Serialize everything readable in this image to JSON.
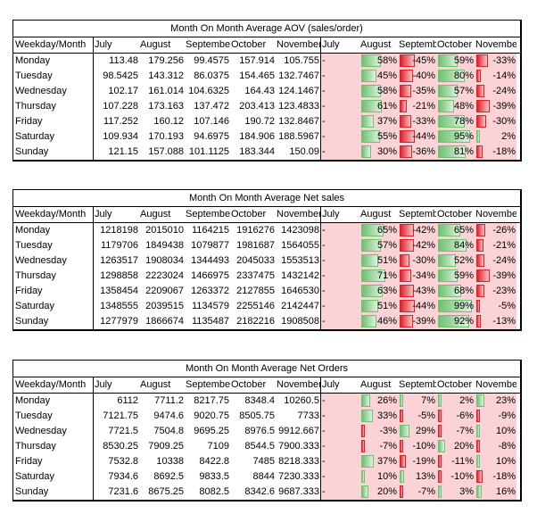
{
  "tables": [
    {
      "title": "Month On Month Average AOV (sales/order)",
      "headers": [
        "Weekday/Month",
        "July",
        "August",
        "September",
        "October",
        "November",
        "July",
        "August",
        "September",
        "October",
        "November"
      ],
      "rows": [
        {
          "day": "Monday",
          "vals": [
            "113.48",
            "179.256",
            "99.4575",
            "157.914",
            "105.755"
          ],
          "pct": [
            "-",
            "58%",
            "-45%",
            "59%",
            "-33%"
          ]
        },
        {
          "day": "Tuesday",
          "vals": [
            "98.5425",
            "143.312",
            "86.0375",
            "154.465",
            "132.7467"
          ],
          "pct": [
            "-",
            "45%",
            "-40%",
            "80%",
            "-14%"
          ]
        },
        {
          "day": "Wednesday",
          "vals": [
            "102.17",
            "161.014",
            "104.6325",
            "164.43",
            "124.1467"
          ],
          "pct": [
            "-",
            "58%",
            "-35%",
            "57%",
            "-24%"
          ]
        },
        {
          "day": "Thursday",
          "vals": [
            "107.228",
            "173.163",
            "137.472",
            "203.413",
            "123.4833"
          ],
          "pct": [
            "-",
            "61%",
            "-21%",
            "48%",
            "-39%"
          ]
        },
        {
          "day": "Friday",
          "vals": [
            "117.252",
            "160.12",
            "107.146",
            "190.72",
            "132.8467"
          ],
          "pct": [
            "-",
            "37%",
            "-33%",
            "78%",
            "-30%"
          ]
        },
        {
          "day": "Saturday",
          "vals": [
            "109.934",
            "170.193",
            "94.6975",
            "184.906",
            "188.5967"
          ],
          "pct": [
            "-",
            "55%",
            "-44%",
            "95%",
            "2%"
          ]
        },
        {
          "day": "Sunday",
          "vals": [
            "121.15",
            "157.088",
            "101.1125",
            "183.344",
            "150.09"
          ],
          "pct": [
            "-",
            "30%",
            "-36%",
            "81%",
            "-18%"
          ]
        }
      ]
    },
    {
      "title": "Month On Month Average Net sales",
      "headers": [
        "Weekday/Month",
        "July",
        "August",
        "September",
        "October",
        "November",
        "July",
        "August",
        "September",
        "October",
        "November"
      ],
      "rows": [
        {
          "day": "Monday",
          "vals": [
            "1218198",
            "2015010",
            "1164215",
            "1916276",
            "1423098"
          ],
          "pct": [
            "-",
            "65%",
            "-42%",
            "65%",
            "-26%"
          ]
        },
        {
          "day": "Tuesday",
          "vals": [
            "1179706",
            "1849438",
            "1079877",
            "1981687",
            "1564055"
          ],
          "pct": [
            "-",
            "57%",
            "-42%",
            "84%",
            "-21%"
          ]
        },
        {
          "day": "Wednesday",
          "vals": [
            "1263517",
            "1908034",
            "1344493",
            "2045033",
            "1553513"
          ],
          "pct": [
            "-",
            "51%",
            "-30%",
            "52%",
            "-24%"
          ]
        },
        {
          "day": "Thursday",
          "vals": [
            "1298858",
            "2223024",
            "1466975",
            "2337475",
            "1432142"
          ],
          "pct": [
            "-",
            "71%",
            "-34%",
            "59%",
            "-39%"
          ]
        },
        {
          "day": "Friday",
          "vals": [
            "1358454",
            "2209067",
            "1263372",
            "2127855",
            "1646530"
          ],
          "pct": [
            "-",
            "63%",
            "-43%",
            "68%",
            "-23%"
          ]
        },
        {
          "day": "Saturday",
          "vals": [
            "1348555",
            "2039515",
            "1134579",
            "2255146",
            "2142447"
          ],
          "pct": [
            "-",
            "51%",
            "-44%",
            "99%",
            "-5%"
          ]
        },
        {
          "day": "Sunday",
          "vals": [
            "1277979",
            "1866674",
            "1135487",
            "2182216",
            "1908508"
          ],
          "pct": [
            "-",
            "46%",
            "-39%",
            "92%",
            "-13%"
          ]
        }
      ]
    },
    {
      "title": "Month On Month Average Net Orders",
      "headers": [
        "Weekday/Month",
        "July",
        "August",
        "September",
        "October",
        "November",
        "July",
        "August",
        "September",
        "October",
        "November"
      ],
      "rows": [
        {
          "day": "Monday",
          "vals": [
            "6112",
            "7711.2",
            "8217.75",
            "8348.4",
            "10260.5"
          ],
          "pct": [
            "-",
            "26%",
            "7%",
            "2%",
            "23%"
          ]
        },
        {
          "day": "Tuesday",
          "vals": [
            "7121.75",
            "9474.6",
            "9020.75",
            "8505.75",
            "7733"
          ],
          "pct": [
            "-",
            "33%",
            "-5%",
            "-6%",
            "-9%"
          ]
        },
        {
          "day": "Wednesday",
          "vals": [
            "7721.5",
            "7504.8",
            "9695.25",
            "8976.5",
            "9912.667"
          ],
          "pct": [
            "-",
            "-3%",
            "29%",
            "-7%",
            "10%"
          ]
        },
        {
          "day": "Thursday",
          "vals": [
            "8530.25",
            "7909.25",
            "7109",
            "8544.5",
            "7900.333"
          ],
          "pct": [
            "-",
            "-7%",
            "-10%",
            "20%",
            "-8%"
          ]
        },
        {
          "day": "Friday",
          "vals": [
            "7532.8",
            "10338",
            "8422.8",
            "7485",
            "8218.333"
          ],
          "pct": [
            "-",
            "37%",
            "-19%",
            "-11%",
            "10%"
          ]
        },
        {
          "day": "Saturday",
          "vals": [
            "7934.6",
            "8692.5",
            "9833.5",
            "8844",
            "7230.333"
          ],
          "pct": [
            "-",
            "10%",
            "13%",
            "-10%",
            "-18%"
          ]
        },
        {
          "day": "Sunday",
          "vals": [
            "7231.6",
            "8675.25",
            "8082.5",
            "8342.6",
            "9687.333"
          ],
          "pct": [
            "-",
            "20%",
            "-7%",
            "3%",
            "16%"
          ]
        }
      ]
    }
  ]
}
